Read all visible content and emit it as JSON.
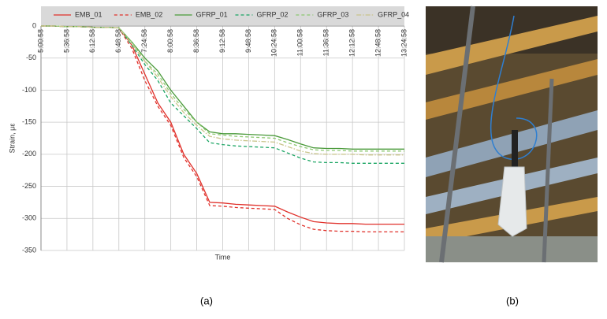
{
  "chart_data": {
    "type": "line",
    "ylabel": "Strain, με",
    "xlabel": "Time",
    "categories": [
      "5:00:58",
      null,
      "5:36:58",
      null,
      "6:12:58",
      null,
      "6:48:58",
      null,
      "7:24:58",
      null,
      "8:00:58",
      null,
      "8:36:58",
      null,
      "9:12:58",
      null,
      "9:48:58",
      null,
      "10:24:58",
      null,
      "11:00:58",
      null,
      "11:36:58",
      null,
      "12:12:58",
      null,
      "12:48:58",
      null,
      "13:24:58"
    ],
    "ylim": [
      -350,
      0
    ],
    "yticks": [
      0,
      -50,
      -100,
      -150,
      -200,
      -250,
      -300,
      -350
    ],
    "grid": true,
    "series": [
      {
        "name": "EMB_01",
        "color": "#e0302a",
        "dash": "solid",
        "values": [
          0,
          0,
          -1,
          -1,
          -2,
          -2,
          -3,
          -30,
          -75,
          -120,
          -150,
          -200,
          -230,
          -275,
          -276,
          -278,
          -279,
          -280,
          -281,
          -290,
          -298,
          -305,
          -307,
          -308,
          -308,
          -309,
          -309,
          -309,
          -309
        ]
      },
      {
        "name": "EMB_02",
        "color": "#e0302a",
        "dash": "dash",
        "values": [
          0,
          0,
          -1,
          -1,
          -2,
          -2,
          -3,
          -35,
          -85,
          -125,
          -155,
          -205,
          -235,
          -280,
          -281,
          -283,
          -284,
          -285,
          -286,
          -300,
          -310,
          -317,
          -319,
          -320,
          -320,
          -321,
          -321,
          -321,
          -321
        ]
      },
      {
        "name": "GFRP_01",
        "color": "#4a9a3a",
        "dash": "solid",
        "values": [
          0,
          0,
          -1,
          -1,
          -2,
          -2,
          -3,
          -25,
          -50,
          -70,
          -100,
          -125,
          -150,
          -165,
          -168,
          -168,
          -169,
          -170,
          -171,
          -177,
          -184,
          -190,
          -191,
          -191,
          -192,
          -192,
          -192,
          -192,
          -192
        ]
      },
      {
        "name": "GFRP_02",
        "color": "#1aa563",
        "dash": "dash",
        "values": [
          0,
          0,
          -1,
          -1,
          -2,
          -2,
          -3,
          -30,
          -60,
          -85,
          -120,
          -140,
          -160,
          -182,
          -185,
          -187,
          -188,
          -189,
          -190,
          -198,
          -206,
          -212,
          -213,
          -213,
          -214,
          -214,
          -214,
          -214,
          -214
        ]
      },
      {
        "name": "GFRP_03",
        "color": "#8cc870",
        "dash": "dash",
        "values": [
          0,
          0,
          -1,
          -1,
          -2,
          -2,
          -3,
          -25,
          -55,
          -75,
          -105,
          -130,
          -150,
          -168,
          -170,
          -172,
          -173,
          -174,
          -175,
          -182,
          -188,
          -193,
          -194,
          -194,
          -195,
          -195,
          -195,
          -195,
          -195
        ]
      },
      {
        "name": "GFRP_04",
        "color": "#c9c48a",
        "dash": "dashdot",
        "values": [
          0,
          0,
          -1,
          -1,
          -2,
          -2,
          -3,
          -28,
          -55,
          -80,
          -110,
          -135,
          -155,
          -172,
          -176,
          -178,
          -179,
          -180,
          -181,
          -188,
          -195,
          -199,
          -200,
          -200,
          -200,
          -201,
          -201,
          -201,
          -201
        ]
      }
    ],
    "panel_labels": [
      "(a)",
      "(b)"
    ]
  }
}
